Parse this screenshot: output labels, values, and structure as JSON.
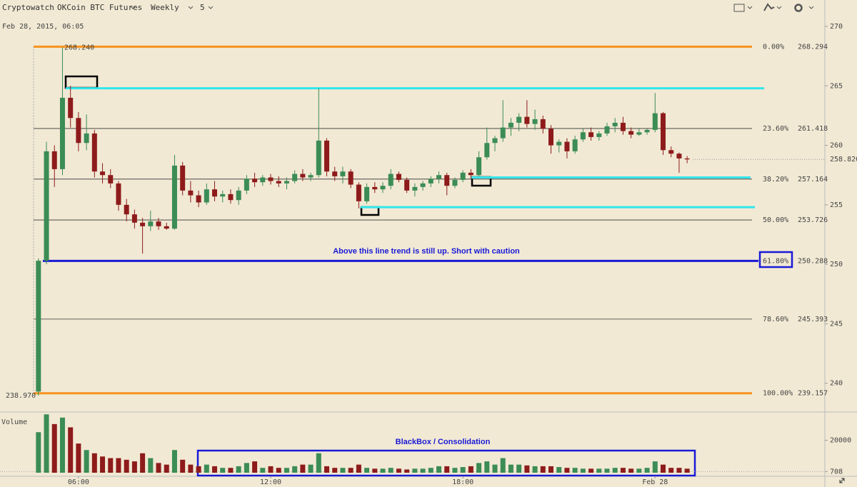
{
  "chart_data": {
    "type": "candlestick",
    "header": {
      "site": "Cryptowatch",
      "market": "OKCoin BTC Futures",
      "period": "Weekly",
      "interval": "5"
    },
    "title": "Feb 28, 2015, 06:05",
    "volume_title": "Volume",
    "colors": {
      "up": "#3b8c55",
      "down": "#8e1b1b"
    },
    "x": [
      4.75,
      5,
      5.25,
      5.5,
      5.75,
      6,
      6.25,
      6.5,
      6.75,
      7,
      7.25,
      7.5,
      7.75,
      8,
      8.25,
      8.5,
      8.75,
      9,
      9.25,
      9.5,
      9.75,
      10,
      10.25,
      10.5,
      10.75,
      11,
      11.25,
      11.5,
      11.75,
      12,
      12.25,
      12.5,
      12.75,
      13,
      13.25,
      13.5,
      13.75,
      14,
      14.25,
      14.5,
      14.75,
      15,
      15.25,
      15.5,
      15.75,
      16,
      16.25,
      16.5,
      16.75,
      17,
      17.25,
      17.5,
      17.75,
      18,
      18.25,
      18.5,
      18.75,
      19,
      19.25,
      19.5,
      19.75,
      20,
      20.25,
      20.5,
      20.75,
      21,
      21.25,
      21.5,
      21.75,
      22,
      22.25,
      22.5,
      22.75,
      23,
      23.25,
      23.5,
      23.75,
      24,
      24.25,
      24.5,
      24.75,
      25
    ],
    "open": [
      239.3,
      250.3,
      259.5,
      258,
      264,
      262.3,
      260.2,
      261,
      257.8,
      257.5,
      256.8,
      255,
      254.2,
      253.5,
      253.2,
      253.6,
      253.2,
      253,
      258.3,
      256.2,
      255.8,
      255.2,
      256.3,
      255.7,
      255.9,
      255.4,
      256.2,
      257.2,
      256.9,
      257.3,
      257,
      256.8,
      257,
      257.6,
      257.3,
      257.5,
      260.4,
      257.8,
      257.4,
      257.8,
      256.7,
      255.3,
      256.5,
      256.3,
      256.6,
      257.6,
      257.1,
      256.2,
      256.5,
      256.8,
      257.2,
      257.5,
      256.6,
      257.1,
      257.7,
      257.5,
      259,
      260.2,
      260.6,
      261.5,
      261.9,
      262.4,
      261.8,
      262.2,
      261.4,
      260,
      260.3,
      259.5,
      260.5,
      261.1,
      260.7,
      261,
      261.6,
      261.9,
      261.2,
      260.9,
      261.1,
      261.3,
      262.7,
      259.6,
      259.3,
      258.9
    ],
    "high": [
      250.5,
      260.3,
      260,
      268.24,
      265,
      262.8,
      262.6,
      261.3,
      258.5,
      258,
      257,
      255.5,
      254.6,
      253.9,
      254.5,
      253.9,
      253.5,
      259.2,
      258.6,
      257,
      256.2,
      256.8,
      257,
      256.2,
      256.3,
      256.5,
      257.5,
      257.7,
      257.5,
      257.6,
      257.4,
      257.3,
      257.9,
      258,
      257.7,
      264.8,
      260.6,
      258.2,
      258.2,
      258,
      256.9,
      256.8,
      256.9,
      256.9,
      258,
      257.8,
      257.3,
      256.8,
      257,
      257.4,
      257.8,
      257.7,
      257.3,
      257.9,
      258,
      259.5,
      261.5,
      260.8,
      263.8,
      262.3,
      262.7,
      263.8,
      263,
      262.5,
      261.7,
      260.5,
      260.6,
      260.8,
      261.4,
      261.5,
      261.2,
      261.9,
      262.3,
      262.4,
      261.5,
      261.4,
      261.4,
      264.4,
      262.8,
      259.9,
      259.4,
      259.1
    ],
    "low": [
      238.97,
      250,
      256.5,
      257.5,
      261.5,
      259.5,
      259.6,
      257.3,
      256.8,
      256.4,
      254.5,
      253.6,
      253,
      250.9,
      252.8,
      252.9,
      252.9,
      252.9,
      255.8,
      255.2,
      254.8,
      255,
      255.3,
      255.2,
      255.1,
      255,
      255.9,
      256.5,
      256.6,
      256.7,
      256.5,
      256.3,
      256.8,
      257,
      257,
      257.3,
      257.4,
      257,
      256.8,
      256.4,
      254.7,
      255.1,
      256,
      256,
      256.3,
      256.9,
      256,
      255.7,
      256.2,
      256.5,
      256.8,
      255.8,
      256.4,
      256.9,
      257.2,
      257.4,
      258.8,
      259.5,
      260.3,
      260.8,
      261.2,
      261.5,
      261.3,
      261,
      259.3,
      259.4,
      258.9,
      259.3,
      260.3,
      260.4,
      260.4,
      260.8,
      261.1,
      260.9,
      260.6,
      260.8,
      260.9,
      261.1,
      259.2,
      259,
      257.7,
      258.5
    ],
    "close": [
      250.3,
      259.5,
      258,
      264,
      262.3,
      260.2,
      261,
      257.8,
      257.5,
      256.8,
      255,
      254.2,
      253.5,
      253.2,
      253.6,
      253.2,
      253,
      258.3,
      256.2,
      255.8,
      255.2,
      256.3,
      255.7,
      255.9,
      255.4,
      256.2,
      257.2,
      256.9,
      257.3,
      257,
      256.8,
      257,
      257.6,
      257.3,
      257.5,
      260.4,
      257.8,
      257.4,
      257.8,
      256.7,
      255.3,
      256.5,
      256.3,
      256.6,
      257.6,
      257.1,
      256.2,
      256.5,
      256.8,
      257.2,
      257.5,
      256.6,
      257.1,
      257.7,
      257.5,
      259,
      260.2,
      260.6,
      261.5,
      261.9,
      262.4,
      261.8,
      262.2,
      261.4,
      260,
      260.3,
      259.5,
      260.5,
      261.1,
      260.7,
      261,
      261.6,
      261.9,
      261.2,
      260.9,
      261.1,
      261.3,
      262.7,
      259.6,
      259.3,
      258.9,
      258.82
    ],
    "volume": [
      25000,
      36000,
      30000,
      34000,
      28000,
      18000,
      14000,
      12000,
      10000,
      9000,
      9000,
      8000,
      7000,
      12000,
      9000,
      6000,
      5000,
      14000,
      8000,
      5000,
      4000,
      5000,
      4000,
      3000,
      3000,
      4000,
      6000,
      7000,
      3000,
      4000,
      3000,
      3000,
      4000,
      5000,
      5000,
      12000,
      4000,
      3000,
      3000,
      3000,
      5000,
      3000,
      2500,
      2500,
      3000,
      2500,
      2000,
      2500,
      2500,
      3000,
      4000,
      4000,
      3000,
      3500,
      4000,
      6000,
      7000,
      5000,
      9000,
      5000,
      5000,
      4500,
      4000,
      4000,
      4000,
      3500,
      3000,
      3000,
      2500,
      2500,
      2500,
      2500,
      3000,
      3000,
      2500,
      2500,
      3000,
      7000,
      5000,
      3000,
      3000,
      2500
    ],
    "xlim": [
      3.55,
      29.3
    ],
    "xticks": [
      {
        "value": 6,
        "label": "06:00"
      },
      {
        "value": 12,
        "label": "12:00"
      },
      {
        "value": 18,
        "label": "18:00"
      },
      {
        "value": 24,
        "label": "Feb 28"
      }
    ],
    "ylim": [
      237.7,
      270.9
    ],
    "yticks": [
      240,
      245,
      250,
      255,
      260,
      265,
      270
    ],
    "volume_ylim": [
      0,
      37000
    ],
    "volume_yticks": [
      708,
      20000
    ],
    "last_price": {
      "value": 258.82,
      "label": "258.820"
    },
    "high_label": {
      "value": 268.24,
      "label": "268.240"
    },
    "low_label": {
      "value": 238.97,
      "label": "238.970"
    },
    "fib_levels": [
      {
        "level": "0.00%",
        "value": 268.294,
        "label": "268.294",
        "color": "#f7931e"
      },
      {
        "level": "23.60%",
        "value": 261.418,
        "label": "261.418",
        "color": "#333333"
      },
      {
        "level": "38.20%",
        "value": 257.164,
        "label": "257.164",
        "color": "#333333"
      },
      {
        "level": "50.00%",
        "value": 253.726,
        "label": "253.726",
        "color": "#333333"
      },
      {
        "level": "61.80%",
        "value": 250.288,
        "label": "250.288",
        "color": "#1a1ad6"
      },
      {
        "level": "78.60%",
        "value": 245.393,
        "label": "245.393",
        "color": "#333333"
      },
      {
        "level": "100.00%",
        "value": 239.157,
        "label": "239.157",
        "color": "#f7931e"
      }
    ],
    "horizontal_lines": [
      {
        "value": 264.8,
        "color": "#33e6ec"
      },
      {
        "value": 257.3,
        "color": "#33e6ec"
      },
      {
        "value": 254.8,
        "color": "#33e6ec"
      }
    ],
    "annotations": [
      "Above this line trend is still up. Short with caution",
      "BlackBox / Consolidation"
    ]
  }
}
